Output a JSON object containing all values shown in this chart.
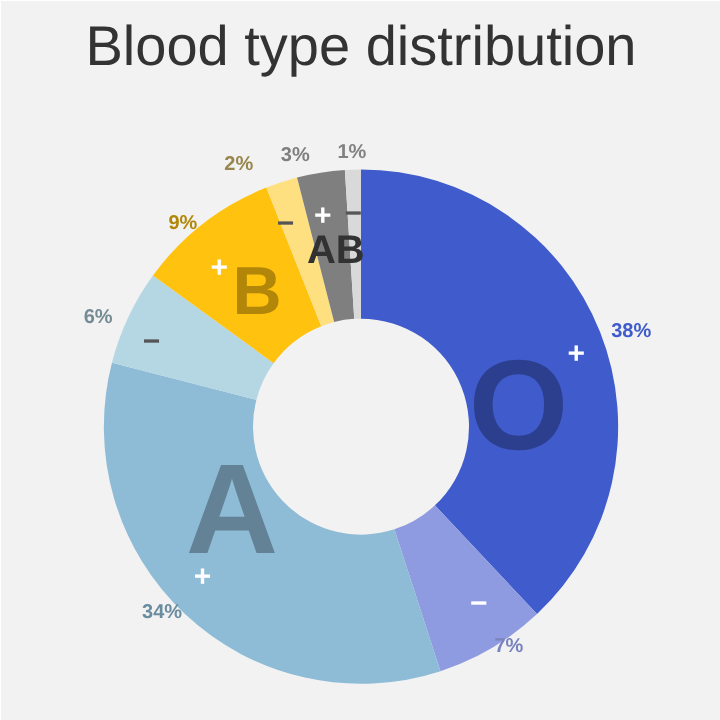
{
  "chart_data": {
    "type": "donut",
    "title": "Blood type distribution",
    "categories": [
      "+",
      "−",
      "+",
      "−",
      "+",
      "−",
      "+",
      "−"
    ],
    "values": [
      38,
      7,
      34,
      6,
      9,
      2,
      3,
      1
    ],
    "colors": [
      "#3f5bcc",
      "#8f9be0",
      "#8ebbd6",
      "#b5d6e3",
      "#ffc20e",
      "#ffe080",
      "#7f7f7f",
      "#d9d9d9"
    ],
    "value_labels": [
      "38%",
      "7%",
      "34%",
      "6%",
      "9%",
      "2%",
      "3%",
      "1%"
    ],
    "annotations": [
      "O",
      "A",
      "B",
      "AB"
    ],
    "legend": false
  }
}
